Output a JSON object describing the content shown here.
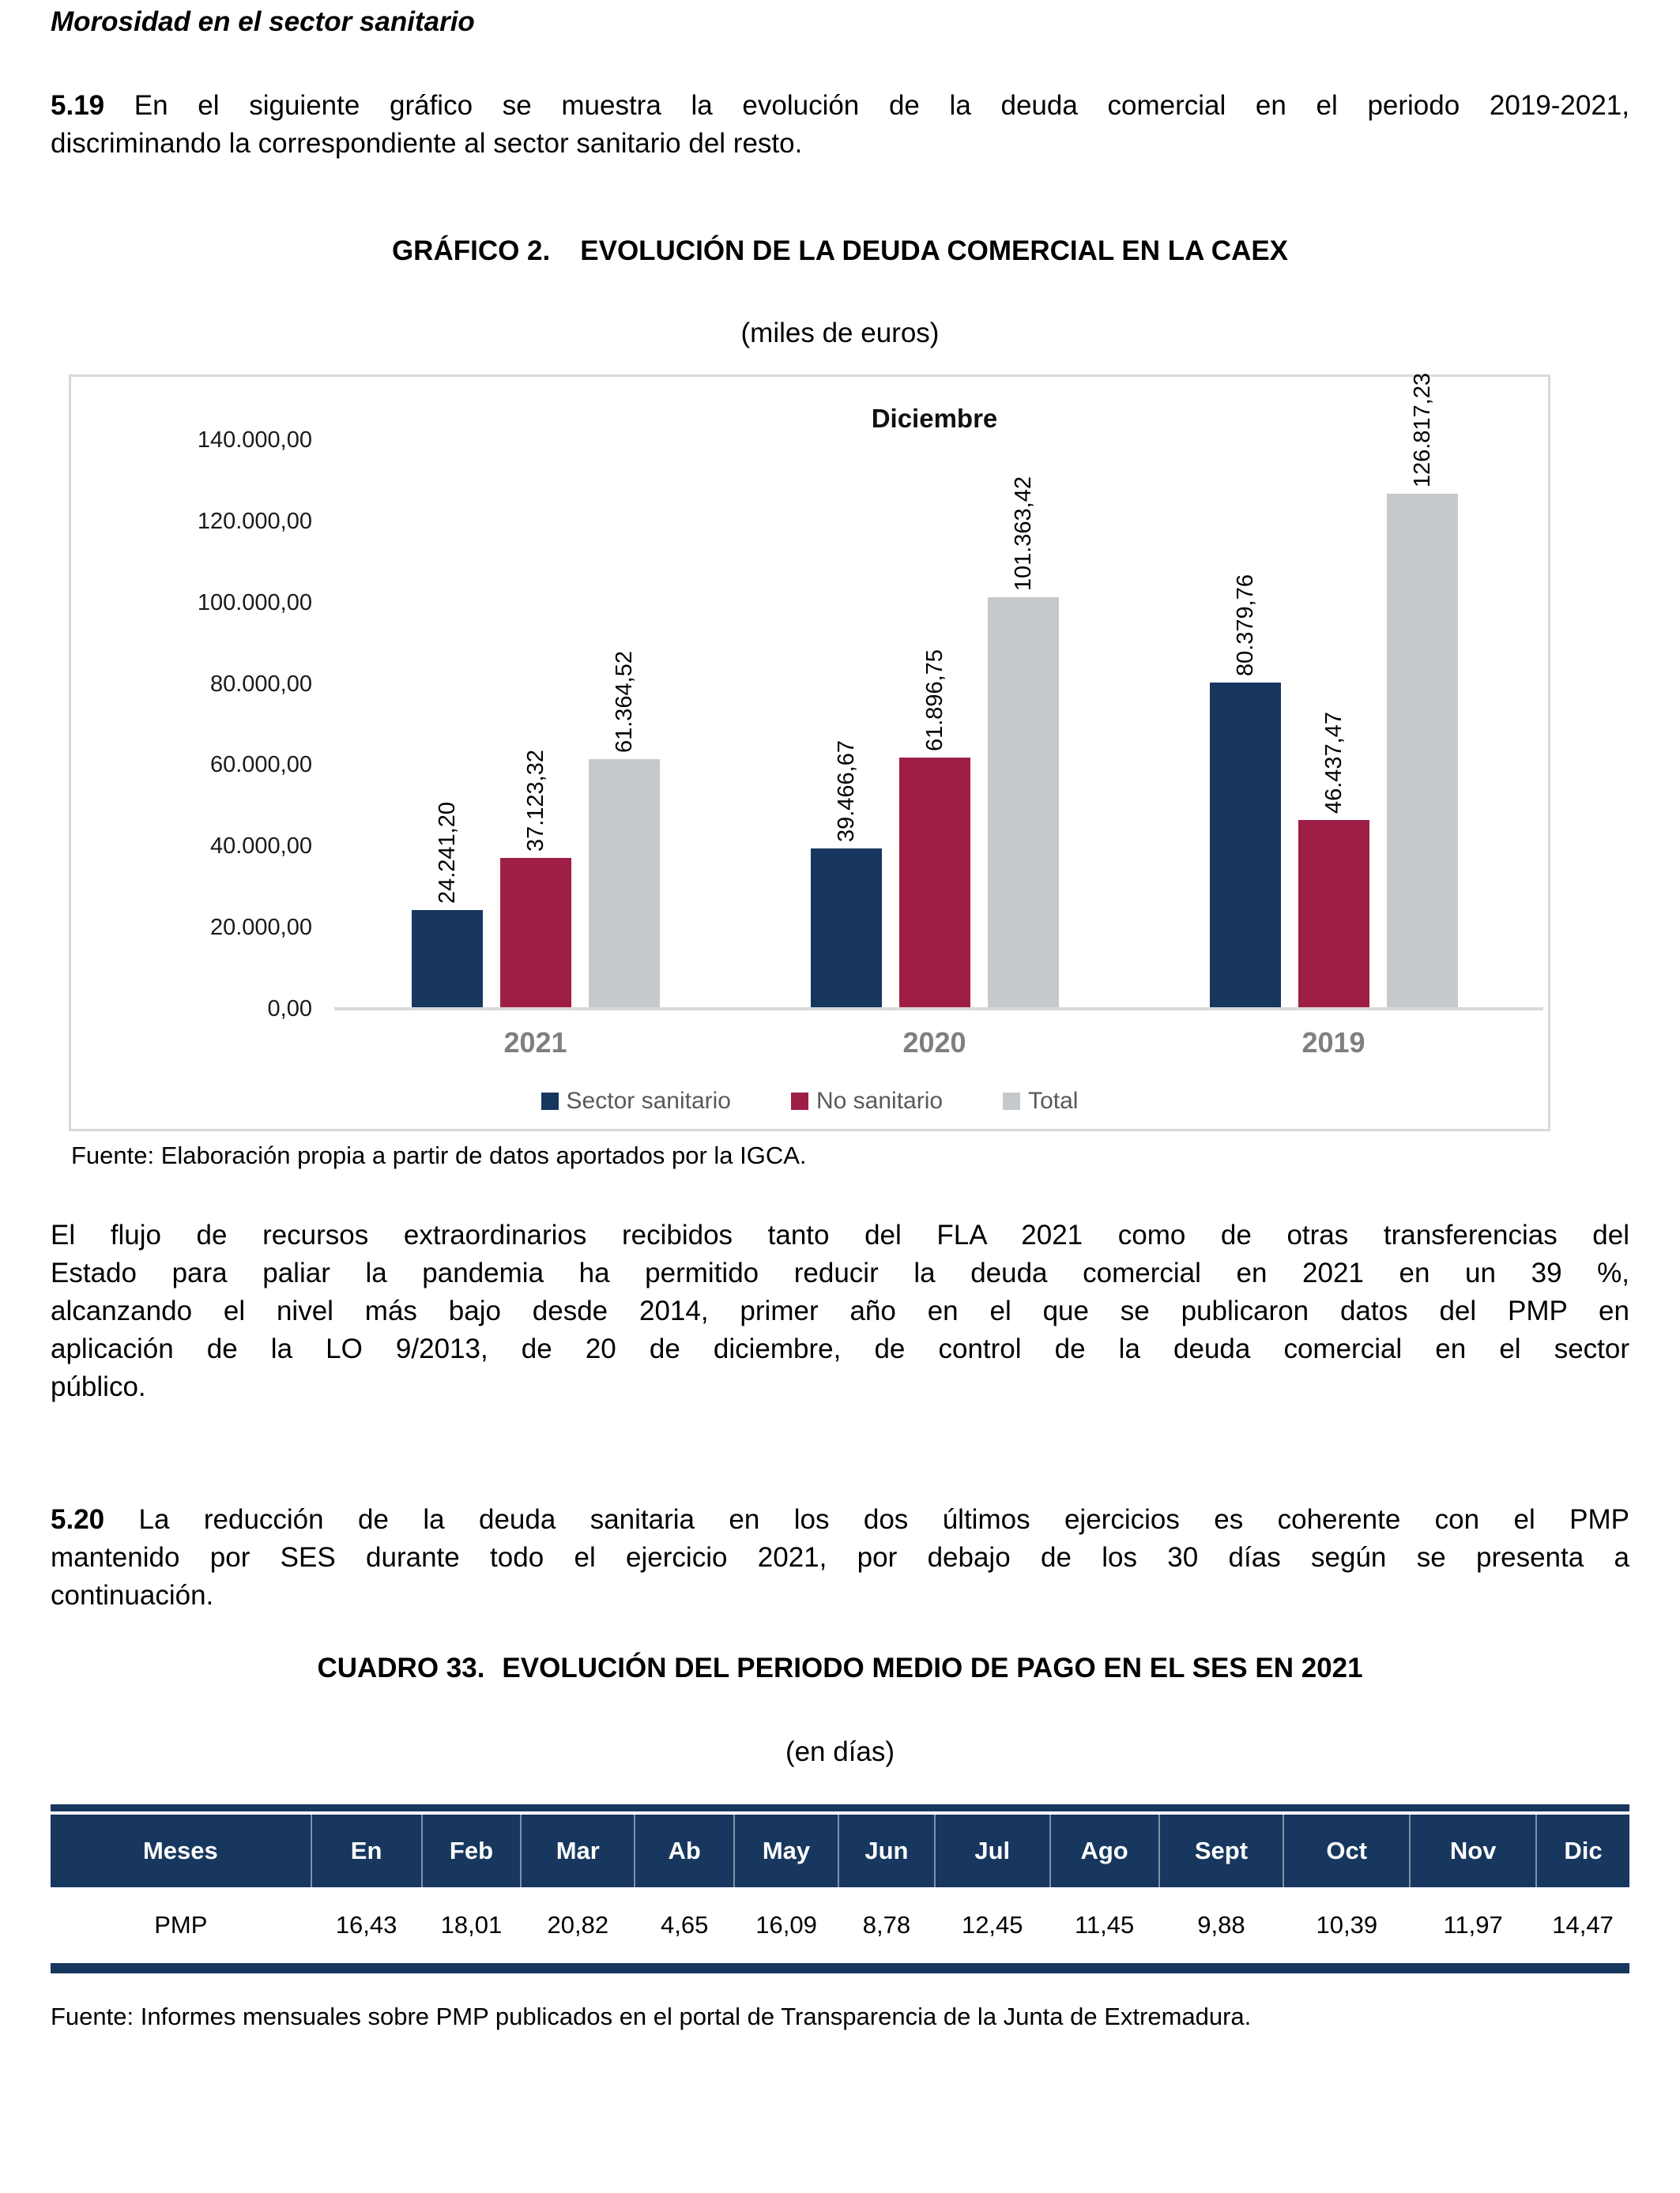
{
  "document": {
    "section_title": "Morosidad en el sector sanitario"
  },
  "paragraphs": {
    "p519": {
      "bold_prefix": "5.19",
      "lines": [
        "En el siguiente gráfico se muestra la evolución de la deuda comercial en el periodo 2019-2021,",
        "discriminando la correspondiente al sector sanitario del resto."
      ]
    },
    "flujo": {
      "bold_prefix": "",
      "lines": [
        "El flujo de recursos extraordinarios recibidos tanto del FLA 2021 como de otras transferencias del",
        "Estado para paliar la pandemia ha permitido reducir la deuda comercial en 2021 en un 39 %,",
        "alcanzando el nivel más bajo desde 2014, primer año en el que se publicaron datos del PMP en",
        "aplicación de la LO 9/2013, de 20 de diciembre, de control de la deuda comercial en el sector",
        "público."
      ]
    },
    "p520": {
      "bold_prefix": "5.20",
      "lines": [
        "La reducción de la deuda sanitaria en los dos últimos ejercicios es coherente con el PMP",
        "mantenido por SES durante todo el ejercicio 2021, por debajo de los 30 días según se presenta a",
        "continuación."
      ]
    }
  },
  "grafico": {
    "label": "GRÁFICO 2.",
    "title": "EVOLUCIÓN DE LA DEUDA COMERCIAL EN LA CAEX",
    "unit": "(miles de euros)",
    "source": "Fuente: Elaboración propia a partir de datos aportados por la IGCA."
  },
  "chart_data": {
    "type": "bar",
    "title": "Diciembre",
    "categories": [
      "2021",
      "2020",
      "2019"
    ],
    "series": [
      {
        "name": "Sector sanitario",
        "color": "#17375E",
        "values": [
          24241.2,
          39466.67,
          80379.76
        ],
        "labels": [
          "24.241,20",
          "39.466,67",
          "80.379,76"
        ]
      },
      {
        "name": "No sanitario",
        "color": "#9E1E45",
        "values": [
          37123.32,
          61896.75,
          46437.47
        ],
        "labels": [
          "37.123,32",
          "61.896,75",
          "46.437,47"
        ]
      },
      {
        "name": "Total",
        "color": "#C6C9CC",
        "values": [
          61364.52,
          101363.42,
          126817.23
        ],
        "labels": [
          "61.364,52",
          "101.363,42",
          "126.817,23"
        ]
      }
    ],
    "ylim": [
      0,
      140000
    ],
    "ytick_labels": [
      "140.000,00",
      "120.000,00",
      "100.000,00",
      "80.000,00",
      "60.000,00",
      "40.000,00",
      "20.000,00",
      "0,00"
    ],
    "xlabel": "",
    "ylabel": "",
    "grid": false,
    "legend_position": "bottom",
    "value_labels_rotated": true
  },
  "cuadro": {
    "label": "CUADRO 33.",
    "title": "EVOLUCIÓN DEL PERIODO MEDIO DE PAGO EN EL SES EN 2021",
    "unit": "(en días)",
    "source": "Fuente: Informes mensuales sobre PMP publicados en el portal de Transparencia de la Junta de Extremadura."
  },
  "table": {
    "header": [
      "Meses",
      "En",
      "Feb",
      "Mar",
      "Ab",
      "May",
      "Jun",
      "Jul",
      "Ago",
      "Sept",
      "Oct",
      "Nov",
      "Dic"
    ],
    "rows": [
      [
        "PMP",
        "16,43",
        "18,01",
        "20,82",
        "4,65",
        "16,09",
        "8,78",
        "12,45",
        "11,45",
        "9,88",
        "10,39",
        "11,97",
        "14,47"
      ]
    ]
  },
  "colors": {
    "navy": "#17375E",
    "red": "#9E1E45",
    "gray": "#C6C9CC",
    "box_border": "#D9D9D9",
    "axis_line": "#D9D9D9",
    "category_label": "#7F7F7F",
    "legend_text": "#595959",
    "table_header_bg": "#17375E",
    "table_header_text": "#FFFFFF"
  }
}
